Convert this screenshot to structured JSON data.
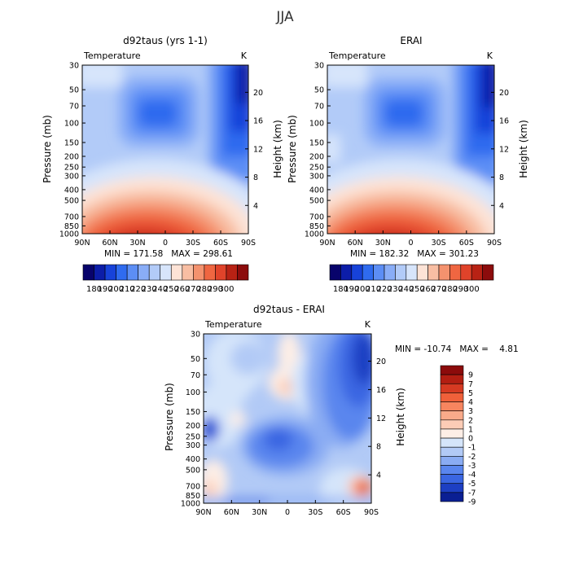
{
  "figure_title": "JJA",
  "chart_data": [
    {
      "type": "heatmap",
      "title": "d92taus (yrs 1-1)",
      "left_label": "Temperature",
      "right_label": "K",
      "ylabel": "Pressure (mb)",
      "ylabel_right": "Height (km)",
      "x_ticks": [
        "90N",
        "60N",
        "30N",
        "0",
        "30S",
        "60S",
        "90S"
      ],
      "y_ticks": [
        "30",
        "50",
        "70",
        "100",
        "150",
        "200",
        "250",
        "300",
        "400",
        "500",
        "700",
        "850",
        "1000"
      ],
      "y_ticks_right": [
        "20",
        "16",
        "12",
        "8",
        "4"
      ],
      "stats_text": "MIN = 171.58   MAX = 298.61",
      "min": 171.58,
      "max": 298.61,
      "colorbar_labels": [
        "180",
        "190",
        "200",
        "210",
        "220",
        "230",
        "240",
        "250",
        "260",
        "270",
        "280",
        "290",
        "300"
      ]
    },
    {
      "type": "heatmap",
      "title": "ERAI",
      "left_label": "Temperature",
      "right_label": "K",
      "ylabel": "Pressure (mb)",
      "ylabel_right": "Height (km)",
      "x_ticks": [
        "90N",
        "60N",
        "30N",
        "0",
        "30S",
        "60S",
        "90S"
      ],
      "y_ticks": [
        "30",
        "50",
        "70",
        "100",
        "150",
        "200",
        "250",
        "300",
        "400",
        "500",
        "700",
        "850",
        "1000"
      ],
      "y_ticks_right": [
        "20",
        "16",
        "12",
        "8",
        "4"
      ],
      "stats_text": "MIN = 182.32   MAX = 301.23",
      "min": 182.32,
      "max": 301.23,
      "colorbar_labels": [
        "180",
        "190",
        "200",
        "210",
        "220",
        "230",
        "240",
        "250",
        "260",
        "270",
        "280",
        "290",
        "300"
      ]
    },
    {
      "type": "heatmap",
      "title": "d92taus - ERAI",
      "left_label": "Temperature",
      "right_label": "K",
      "ylabel": "Pressure (mb)",
      "ylabel_right": "Height (km)",
      "x_ticks": [
        "90N",
        "60N",
        "30N",
        "0",
        "30S",
        "60S",
        "90S"
      ],
      "y_ticks": [
        "30",
        "50",
        "70",
        "100",
        "150",
        "200",
        "250",
        "300",
        "400",
        "500",
        "700",
        "850",
        "1000"
      ],
      "y_ticks_right": [
        "20",
        "16",
        "12",
        "8",
        "4"
      ],
      "stats_text": "MIN = -10.74   MAX =    4.81",
      "min": -10.74,
      "max": 4.81,
      "colorbar_labels": [
        "9",
        "7",
        "5",
        "4",
        "3",
        "2",
        "1",
        "0",
        "-1",
        "-2",
        "-3",
        "-4",
        "-5",
        "-7",
        "-9"
      ]
    }
  ],
  "colors": {
    "field_scale": [
      "#08036b",
      "#0c1da8",
      "#1742d9",
      "#2f6bef",
      "#5c8ef5",
      "#89adf7",
      "#b2cbf8",
      "#d7e5fb",
      "#fde3d6",
      "#f8bea3",
      "#f4926e",
      "#ef6641",
      "#e0432a",
      "#b82214",
      "#8c0c0c"
    ],
    "diff_scale": [
      "#8c0b0b",
      "#b31e12",
      "#d63a22",
      "#f0603a",
      "#f7855f",
      "#f9aa8a",
      "#fcccb6",
      "#fdeee6",
      "#d5e5fa",
      "#b2caf6",
      "#8aacf3",
      "#5a86ee",
      "#3a66e2",
      "#1d3fc3",
      "#0a1f93"
    ]
  }
}
